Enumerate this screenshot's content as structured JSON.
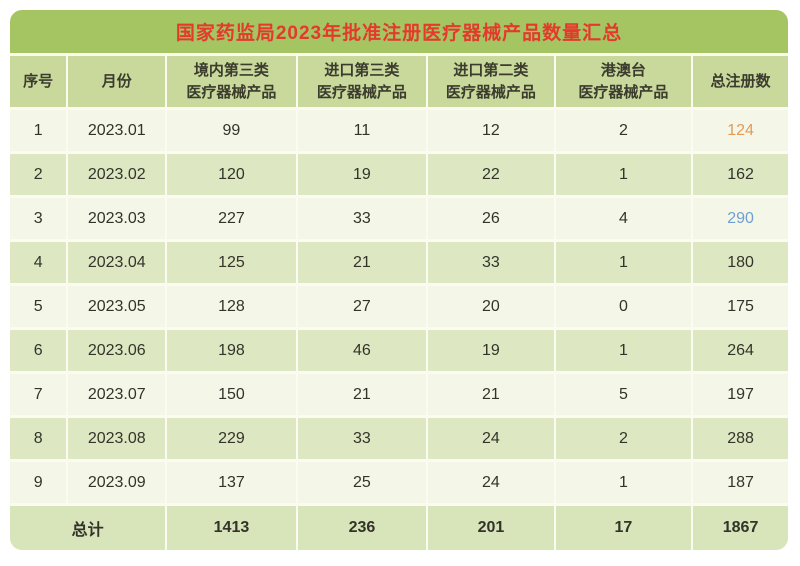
{
  "title": "国家药监局2023年批准注册医疗器械产品数量汇总",
  "colors": {
    "title_bg": "#a5c462",
    "title_text": "#e43a2c",
    "header_bg": "#c9d99c",
    "row_odd_bg": "#f4f6e7",
    "row_even_bg": "#dde8c3",
    "footer_bg": "#d8e4b9",
    "gridline": "#fbfbf1",
    "text": "#33332a",
    "highlight_orange": "#e49a55",
    "highlight_blue": "#6f9fd4"
  },
  "table": {
    "headers": [
      {
        "line1": "序号",
        "line2": ""
      },
      {
        "line1": "月份",
        "line2": ""
      },
      {
        "line1": "境内第三类",
        "line2": "医疗器械产品"
      },
      {
        "line1": "进口第三类",
        "line2": "医疗器械产品"
      },
      {
        "line1": "进口第二类",
        "line2": "医疗器械产品"
      },
      {
        "line1": "港澳台",
        "line2": "医疗器械产品"
      },
      {
        "line1": "总注册数",
        "line2": ""
      }
    ],
    "rows": [
      {
        "seq": "1",
        "month": "2023.01",
        "domestic3": "99",
        "import3": "11",
        "import2": "12",
        "hmt": "2",
        "total": "124",
        "total_color": "#e49a55"
      },
      {
        "seq": "2",
        "month": "2023.02",
        "domestic3": "120",
        "import3": "19",
        "import2": "22",
        "hmt": "1",
        "total": "162"
      },
      {
        "seq": "3",
        "month": "2023.03",
        "domestic3": "227",
        "import3": "33",
        "import2": "26",
        "hmt": "4",
        "total": "290",
        "total_color": "#6f9fd4"
      },
      {
        "seq": "4",
        "month": "2023.04",
        "domestic3": "125",
        "import3": "21",
        "import2": "33",
        "hmt": "1",
        "total": "180"
      },
      {
        "seq": "5",
        "month": "2023.05",
        "domestic3": "128",
        "import3": "27",
        "import2": "20",
        "hmt": "0",
        "total": "175"
      },
      {
        "seq": "6",
        "month": "2023.06",
        "domestic3": "198",
        "import3": "46",
        "import2": "19",
        "hmt": "1",
        "total": "264"
      },
      {
        "seq": "7",
        "month": "2023.07",
        "domestic3": "150",
        "import3": "21",
        "import2": "21",
        "hmt": "5",
        "total": "197"
      },
      {
        "seq": "8",
        "month": "2023.08",
        "domestic3": "229",
        "import3": "33",
        "import2": "24",
        "hmt": "2",
        "total": "288"
      },
      {
        "seq": "9",
        "month": "2023.09",
        "domestic3": "137",
        "import3": "25",
        "import2": "24",
        "hmt": "1",
        "total": "187"
      }
    ],
    "footer": {
      "label": "总计",
      "domestic3": "1413",
      "import3": "236",
      "import2": "201",
      "hmt": "17",
      "total": "1867"
    }
  },
  "chart_data": {
    "type": "table",
    "title": "国家药监局2023年批准注册医疗器械产品数量汇总",
    "columns": [
      "序号",
      "月份",
      "境内第三类医疗器械产品",
      "进口第三类医疗器械产品",
      "进口第二类医疗器械产品",
      "港澳台医疗器械产品",
      "总注册数"
    ],
    "rows": [
      [
        1,
        "2023.01",
        99,
        11,
        12,
        2,
        124
      ],
      [
        2,
        "2023.02",
        120,
        19,
        22,
        1,
        162
      ],
      [
        3,
        "2023.03",
        227,
        33,
        26,
        4,
        290
      ],
      [
        4,
        "2023.04",
        125,
        21,
        33,
        1,
        180
      ],
      [
        5,
        "2023.05",
        128,
        27,
        20,
        0,
        175
      ],
      [
        6,
        "2023.06",
        198,
        46,
        19,
        1,
        264
      ],
      [
        7,
        "2023.07",
        150,
        21,
        21,
        5,
        197
      ],
      [
        8,
        "2023.08",
        229,
        33,
        24,
        2,
        288
      ],
      [
        9,
        "2023.09",
        137,
        25,
        24,
        1,
        187
      ]
    ],
    "totals_row": [
      "总计",
      "",
      1413,
      236,
      201,
      17,
      1867
    ]
  }
}
